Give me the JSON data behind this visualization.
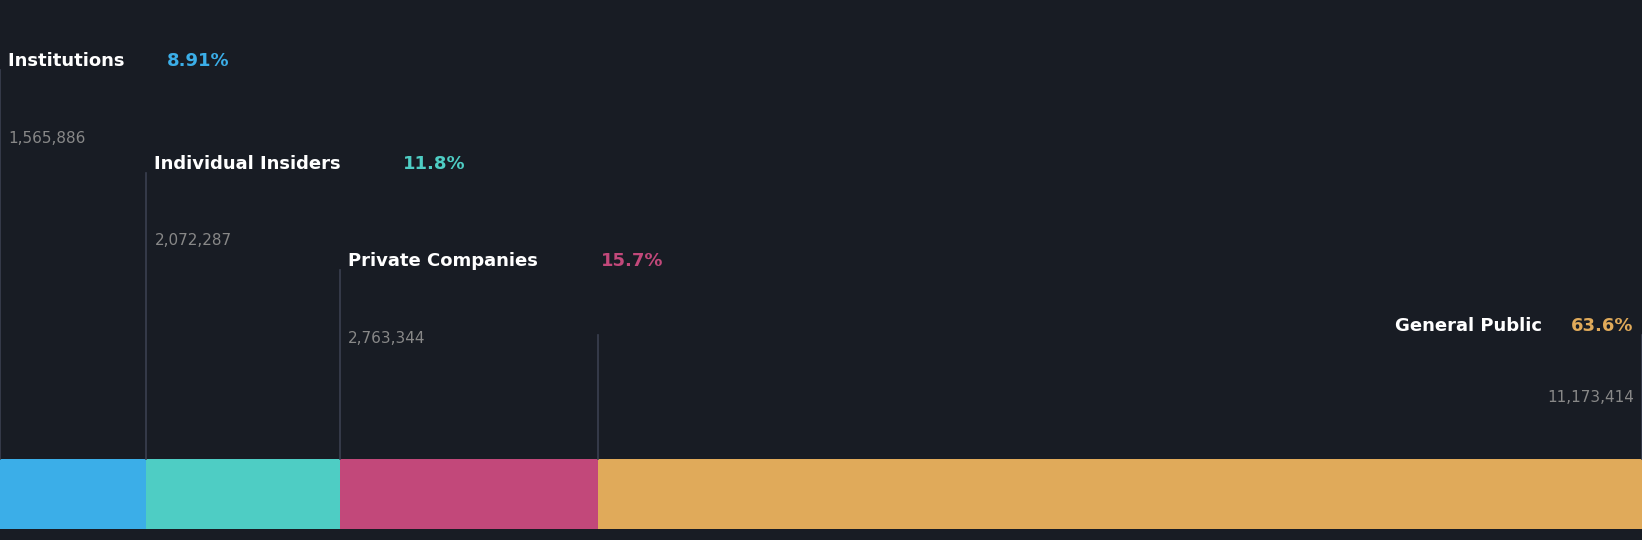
{
  "background_color": "#181c24",
  "bar_height": 0.13,
  "bar_bottom": 0.02,
  "segments": [
    {
      "label": "Institutions",
      "pct_label": "8.91%",
      "value_label": "1,565,886",
      "pct": 8.91,
      "color": "#3baee8",
      "pct_color": "#3baee8",
      "label_color": "#ffffff",
      "value_color": "#888888"
    },
    {
      "label": "Individual Insiders",
      "pct_label": "11.8%",
      "value_label": "2,072,287",
      "pct": 11.8,
      "color": "#4ecdc4",
      "pct_color": "#4ecdc4",
      "label_color": "#ffffff",
      "value_color": "#888888"
    },
    {
      "label": "Private Companies",
      "pct_label": "15.7%",
      "value_label": "2,763,344",
      "pct": 15.7,
      "color": "#c2487a",
      "pct_color": "#c2487a",
      "label_color": "#ffffff",
      "value_color": "#888888"
    },
    {
      "label": "General Public",
      "pct_label": "63.6%",
      "value_label": "11,173,414",
      "pct": 63.6,
      "color": "#e0aa5a",
      "pct_color": "#e0aa5a",
      "label_color": "#ffffff",
      "value_color": "#888888"
    }
  ],
  "label_fontsize": 13,
  "value_fontsize": 11,
  "divider_color": "#3a3f50"
}
